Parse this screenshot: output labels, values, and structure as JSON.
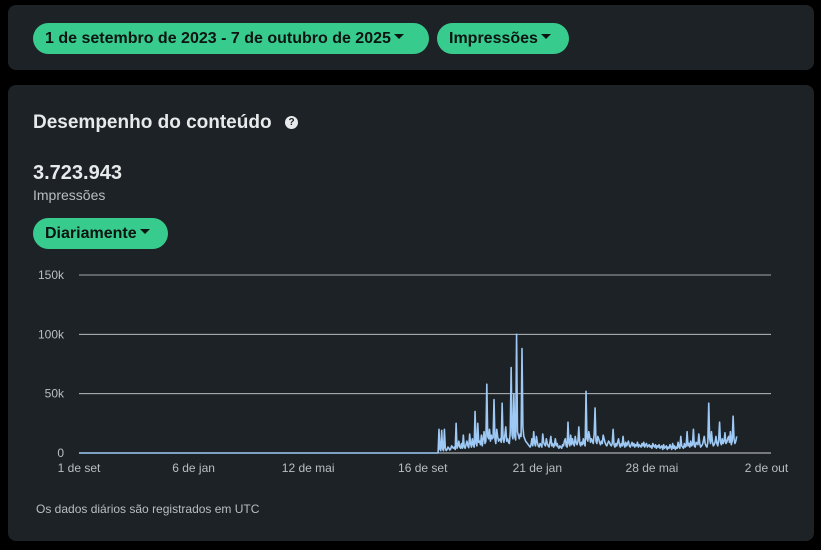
{
  "filters": {
    "date_range_label": "1 de setembro de 2023 - 7 de outubro de 2025",
    "metric_label": "Impressões"
  },
  "content": {
    "title": "Desempenho do conteúdo",
    "help_icon": "question-circle-icon",
    "total_value": "3.723.943",
    "total_label": "Impressões",
    "interval_label": "Diariamente",
    "footnote": "Os dados diários são registrados em UTC"
  },
  "colors": {
    "panel": "#1c2226",
    "accent": "#38cb8e",
    "line": "#9fc9f5"
  },
  "chart_data": {
    "type": "line",
    "title": "",
    "xlabel": "",
    "ylabel": "",
    "ylim": [
      0,
      150000
    ],
    "y_ticks": [
      0,
      50000,
      100000,
      150000
    ],
    "y_tick_labels": [
      "0",
      "50k",
      "100k",
      "150k"
    ],
    "x_tick_labels": [
      "1 de set",
      "6 de jan",
      "12 de mai",
      "16 de set",
      "21 de jan",
      "28 de mai",
      "2 de out"
    ],
    "x_tick_days": [
      0,
      127,
      254,
      381,
      508,
      635,
      762
    ],
    "total_days": 767,
    "grid": true,
    "series": [
      {
        "values": [
          0,
          0,
          0,
          0,
          0,
          0,
          0,
          0,
          0,
          0,
          0,
          0,
          0,
          0,
          0,
          0,
          0,
          0,
          0,
          0,
          0,
          0,
          0,
          0,
          0,
          0,
          0,
          0,
          0,
          0,
          0,
          0,
          0,
          0,
          0,
          0,
          0,
          0,
          0,
          0,
          0,
          0,
          0,
          0,
          0,
          0,
          0,
          0,
          0,
          0,
          0,
          0,
          0,
          0,
          0,
          0,
          0,
          0,
          0,
          0,
          0,
          0,
          0,
          0,
          0,
          0,
          0,
          0,
          0,
          0,
          0,
          0,
          0,
          0,
          0,
          0,
          0,
          0,
          0,
          0,
          0,
          0,
          0,
          0,
          0,
          0,
          0,
          0,
          0,
          0,
          0,
          0,
          0,
          0,
          0,
          0,
          0,
          0,
          0,
          0,
          0,
          0,
          0,
          0,
          0,
          0,
          0,
          0,
          0,
          0,
          0,
          0,
          0,
          0,
          0,
          0,
          0,
          0,
          0,
          0,
          0,
          0,
          0,
          0,
          0,
          0,
          0,
          0,
          0,
          0,
          0,
          0,
          0,
          0,
          0,
          0,
          0,
          0,
          0,
          0,
          0,
          0,
          0,
          0,
          0,
          0,
          0,
          0,
          0,
          0,
          0,
          0,
          0,
          0,
          0,
          0,
          0,
          0,
          0,
          0,
          0,
          0,
          0,
          0,
          0,
          0,
          0,
          0,
          0,
          0,
          0,
          0,
          0,
          0,
          0,
          0,
          0,
          0,
          0,
          0,
          0,
          0,
          0,
          0,
          0,
          0,
          0,
          0,
          0,
          0,
          0,
          0,
          0,
          0,
          0,
          0,
          0,
          0,
          0,
          0,
          0,
          0,
          0,
          0,
          0,
          0,
          0,
          0,
          0,
          0,
          0,
          0,
          0,
          0,
          0,
          0,
          0,
          0,
          0,
          0,
          0,
          0,
          0,
          0,
          0,
          0,
          0,
          0,
          0,
          0,
          0,
          0,
          0,
          0,
          0,
          0,
          0,
          0,
          0,
          0,
          0,
          0,
          0,
          0,
          0,
          0,
          0,
          0,
          0,
          0,
          0,
          0,
          0,
          0,
          0,
          0,
          0,
          0,
          0,
          0,
          0,
          0,
          0,
          0,
          0,
          0,
          0,
          0,
          0,
          0,
          0,
          0,
          0,
          0,
          0,
          0,
          0,
          0,
          0,
          0,
          0,
          0,
          0,
          0,
          0,
          0,
          0,
          0,
          0,
          0,
          0,
          0,
          0,
          0,
          0,
          0,
          0,
          0,
          0,
          0,
          0,
          0,
          0,
          0,
          0,
          0,
          0,
          0,
          0,
          0,
          0,
          0,
          0,
          0,
          0,
          0,
          0,
          0,
          0,
          0,
          0,
          0,
          0,
          0,
          0,
          0,
          0,
          0,
          0,
          0,
          0,
          0,
          0,
          0,
          0,
          0,
          0,
          0,
          0,
          0,
          0,
          0,
          0,
          0,
          0,
          0,
          0,
          0,
          0,
          0,
          0,
          0,
          0,
          0,
          0,
          0,
          0,
          0,
          0,
          0,
          0,
          0,
          0,
          0,
          0,
          0,
          0,
          0,
          0,
          0,
          0,
          0,
          0,
          0,
          0,
          0,
          0,
          0,
          0,
          0,
          0,
          0,
          0,
          0,
          0,
          0,
          0,
          0,
          0,
          0,
          0,
          0,
          0,
          0,
          0,
          0,
          0,
          0,
          0,
          20000,
          3000,
          2000,
          19000,
          3500,
          2000,
          20000,
          4000,
          2000,
          3000,
          5000,
          4000,
          2500,
          3500,
          6000,
          5000,
          4000,
          5000,
          3000,
          25000,
          4000,
          6000,
          10000,
          5000,
          4000,
          8000,
          4000,
          15000,
          5000,
          4000,
          7000,
          10000,
          6000,
          4500,
          16000,
          8000,
          5000,
          12000,
          7000,
          5000,
          35000,
          8000,
          6000,
          25000,
          9000,
          10000,
          7000,
          15000,
          6000,
          12000,
          18000,
          8000,
          10000,
          58000,
          14000,
          12000,
          20000,
          10000,
          15000,
          12000,
          13000,
          45000,
          12000,
          8000,
          20000,
          14000,
          10000,
          11000,
          12000,
          9000,
          42000,
          12000,
          9000,
          15000,
          22000,
          10000,
          12000,
          9000,
          8000,
          18000,
          72000,
          15000,
          12000,
          50000,
          14000,
          11000,
          100000,
          18000,
          15000,
          12000,
          16000,
          14000,
          88000,
          22000,
          14000,
          12000,
          10000,
          9000,
          8000,
          7000,
          6000,
          5000,
          7000,
          12000,
          6000,
          18000,
          8000,
          6000,
          14000,
          9000,
          6000,
          5000,
          8000,
          7000,
          5000,
          16000,
          9000,
          7000,
          6000,
          12000,
          8000,
          6000,
          5000,
          9000,
          14000,
          6000,
          8000,
          5000,
          7000,
          12000,
          6000,
          8000,
          5000,
          4000,
          6000,
          5000,
          4000,
          7000,
          6000,
          10000,
          12000,
          6000,
          5000,
          26000,
          8000,
          6000,
          15000,
          7000,
          12000,
          8000,
          6000,
          14000,
          9000,
          7000,
          10000,
          22000,
          8000,
          6000,
          9000,
          7000,
          12000,
          8000,
          6000,
          52000,
          12000,
          10000,
          18000,
          14000,
          9000,
          12000,
          10000,
          8000,
          16000,
          38000,
          10000,
          8000,
          14000,
          12000,
          9000,
          7000,
          10000,
          8000,
          15000,
          12000,
          9000,
          7000,
          6000,
          8000,
          10000,
          9000,
          7000,
          6000,
          8000,
          20000,
          7000,
          5000,
          8000,
          6000,
          9000,
          12000,
          7000,
          5000,
          8000,
          6000,
          14000,
          7000,
          5000,
          9000,
          6000,
          8000,
          10000,
          6000,
          5000,
          7000,
          9000,
          6000,
          8000,
          5000,
          7000,
          6000,
          9000,
          5000,
          7000,
          6000,
          5000,
          8000,
          6000,
          9000,
          5000,
          7000,
          8000,
          5000,
          6000,
          7000,
          5000,
          6000,
          4000,
          8000,
          6000,
          5000,
          7000,
          4000,
          6000,
          5000,
          7000,
          4000,
          5000,
          6000,
          3000,
          7000,
          4000,
          5000,
          6000,
          3000,
          5000,
          4000,
          7000,
          5000,
          3000,
          8000,
          4000,
          6000,
          3000,
          5000,
          4000,
          9000,
          5000,
          4000,
          14000,
          6000,
          5000,
          4000,
          8000,
          5000,
          6000,
          18000,
          6000,
          8000,
          5000,
          10000,
          6000,
          7000,
          20000,
          6000,
          5000,
          9000,
          8000,
          7000,
          16000,
          8000,
          5000,
          6000,
          7000,
          10000,
          14000,
          8000,
          6000,
          5000,
          9000,
          42000,
          12000,
          8000,
          18000,
          10000,
          6000,
          7000,
          9000,
          14000,
          8000,
          6000,
          11000,
          26000,
          9000,
          7000,
          12000,
          8000,
          10000,
          17000,
          8000,
          9000,
          12000,
          14000,
          9000,
          18000,
          7000,
          10000,
          31000,
          12000,
          8000,
          10000,
          14000
        ]
      }
    ]
  }
}
